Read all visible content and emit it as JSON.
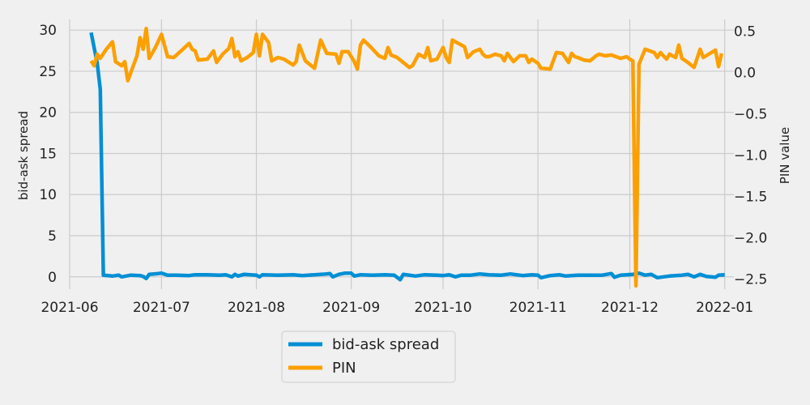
{
  "chart_data": {
    "type": "line",
    "title": "",
    "colors": {
      "bid_ask_spread": "#008fd5",
      "pin": "#fc9f00",
      "background": "#f0f0f0",
      "grid": "#cbcbcb"
    },
    "grid": true,
    "legend_placement": "bottom-center, below plot",
    "x_axis": {
      "type": "date",
      "range": [
        "2021-06-01",
        "2022-01-04"
      ],
      "ticks": [
        "2021-06-01",
        "2021-07-01",
        "2021-08-01",
        "2021-09-01",
        "2021-10-01",
        "2021-11-01",
        "2021-12-01",
        "2022-01-01"
      ],
      "tick_labels": [
        "2021-06",
        "2021-07",
        "2021-08",
        "2021-09",
        "2021-10",
        "2021-11",
        "2021-12",
        "2022-01"
      ]
    },
    "y_left": {
      "label": "bid-ask spread",
      "range": [
        -1.5,
        31.3
      ],
      "ticks": [
        0,
        5,
        10,
        15,
        20,
        25,
        30
      ],
      "tick_labels": [
        "0",
        "5",
        "10",
        "15",
        "20",
        "25",
        "30"
      ]
    },
    "y_right": {
      "label": "PIN value",
      "range": [
        -2.62,
        0.64
      ],
      "ticks": [
        -2.5,
        -2.0,
        -1.5,
        -1.0,
        -0.5,
        0.0,
        0.5
      ],
      "tick_labels": [
        "−2.5",
        "−2.0",
        "−1.5",
        "−1.0",
        "−0.5",
        "0.0",
        "0.5"
      ]
    },
    "series": [
      {
        "name": "bid-ask spread",
        "axis": "left",
        "points": [
          [
            "2021-06-08",
            29.7
          ],
          [
            "2021-06-10",
            26.0
          ],
          [
            "2021-06-11",
            22.8
          ],
          [
            "2021-06-12",
            0.2
          ],
          [
            "2021-06-15",
            0.1
          ],
          [
            "2021-06-17",
            0.2
          ],
          [
            "2021-06-18",
            0.0
          ],
          [
            "2021-06-21",
            0.2
          ],
          [
            "2021-06-24",
            0.15
          ],
          [
            "2021-06-25",
            0.05
          ],
          [
            "2021-06-26",
            -0.2
          ],
          [
            "2021-06-27",
            0.3
          ],
          [
            "2021-06-30",
            0.4
          ],
          [
            "2021-07-01",
            0.45
          ],
          [
            "2021-07-03",
            0.2
          ],
          [
            "2021-07-06",
            0.2
          ],
          [
            "2021-07-10",
            0.15
          ],
          [
            "2021-07-12",
            0.25
          ],
          [
            "2021-07-16",
            0.25
          ],
          [
            "2021-07-20",
            0.2
          ],
          [
            "2021-07-22",
            0.25
          ],
          [
            "2021-07-24",
            0.0
          ],
          [
            "2021-07-25",
            0.3
          ],
          [
            "2021-07-26",
            0.1
          ],
          [
            "2021-07-28",
            0.3
          ],
          [
            "2021-08-01",
            0.2
          ],
          [
            "2021-08-02",
            0.0
          ],
          [
            "2021-08-03",
            0.25
          ],
          [
            "2021-08-08",
            0.2
          ],
          [
            "2021-08-13",
            0.25
          ],
          [
            "2021-08-16",
            0.15
          ],
          [
            "2021-08-20",
            0.25
          ],
          [
            "2021-08-24",
            0.35
          ],
          [
            "2021-08-25",
            0.4
          ],
          [
            "2021-08-26",
            0.0
          ],
          [
            "2021-08-28",
            0.3
          ],
          [
            "2021-08-30",
            0.45
          ],
          [
            "2021-09-01",
            0.45
          ],
          [
            "2021-09-02",
            0.1
          ],
          [
            "2021-09-04",
            0.25
          ],
          [
            "2021-09-08",
            0.2
          ],
          [
            "2021-09-12",
            0.25
          ],
          [
            "2021-09-15",
            0.2
          ],
          [
            "2021-09-17",
            -0.35
          ],
          [
            "2021-09-18",
            0.3
          ],
          [
            "2021-09-22",
            0.1
          ],
          [
            "2021-09-25",
            0.25
          ],
          [
            "2021-09-29",
            0.2
          ],
          [
            "2021-10-01",
            0.15
          ],
          [
            "2021-10-03",
            0.25
          ],
          [
            "2021-10-05",
            0.0
          ],
          [
            "2021-10-07",
            0.2
          ],
          [
            "2021-10-10",
            0.2
          ],
          [
            "2021-10-13",
            0.35
          ],
          [
            "2021-10-16",
            0.25
          ],
          [
            "2021-10-20",
            0.2
          ],
          [
            "2021-10-23",
            0.35
          ],
          [
            "2021-10-27",
            0.15
          ],
          [
            "2021-10-30",
            0.25
          ],
          [
            "2021-11-01",
            0.2
          ],
          [
            "2021-11-02",
            -0.1
          ],
          [
            "2021-11-05",
            0.15
          ],
          [
            "2021-11-08",
            0.25
          ],
          [
            "2021-11-10",
            0.1
          ],
          [
            "2021-11-14",
            0.2
          ],
          [
            "2021-11-18",
            0.2
          ],
          [
            "2021-11-22",
            0.2
          ],
          [
            "2021-11-25",
            0.4
          ],
          [
            "2021-11-26",
            -0.05
          ],
          [
            "2021-11-28",
            0.2
          ],
          [
            "2021-12-02",
            0.3
          ],
          [
            "2021-12-04",
            0.45
          ],
          [
            "2021-12-06",
            0.2
          ],
          [
            "2021-12-08",
            0.3
          ],
          [
            "2021-12-10",
            -0.1
          ],
          [
            "2021-12-14",
            0.1
          ],
          [
            "2021-12-18",
            0.2
          ],
          [
            "2021-12-20",
            0.3
          ],
          [
            "2021-12-22",
            0.0
          ],
          [
            "2021-12-24",
            0.3
          ],
          [
            "2021-12-26",
            0.05
          ],
          [
            "2021-12-29",
            -0.05
          ],
          [
            "2021-12-30",
            0.2
          ],
          [
            "2022-01-01",
            0.25
          ]
        ]
      },
      {
        "name": "PIN",
        "axis": "right",
        "points": [
          [
            "2021-06-08",
            0.14
          ],
          [
            "2021-06-09",
            0.08
          ],
          [
            "2021-06-10",
            0.22
          ],
          [
            "2021-06-11",
            0.17
          ],
          [
            "2021-06-13",
            0.28
          ],
          [
            "2021-06-15",
            0.37
          ],
          [
            "2021-06-16",
            0.13
          ],
          [
            "2021-06-18",
            0.08
          ],
          [
            "2021-06-19",
            0.13
          ],
          [
            "2021-06-20",
            -0.1
          ],
          [
            "2021-06-23",
            0.2
          ],
          [
            "2021-06-24",
            0.42
          ],
          [
            "2021-06-25",
            0.28
          ],
          [
            "2021-06-26",
            0.53
          ],
          [
            "2021-06-27",
            0.17
          ],
          [
            "2021-06-29",
            0.3
          ],
          [
            "2021-07-01",
            0.46
          ],
          [
            "2021-07-03",
            0.19
          ],
          [
            "2021-07-05",
            0.18
          ],
          [
            "2021-07-08",
            0.28
          ],
          [
            "2021-07-10",
            0.35
          ],
          [
            "2021-07-11",
            0.28
          ],
          [
            "2021-07-12",
            0.26
          ],
          [
            "2021-07-13",
            0.15
          ],
          [
            "2021-07-16",
            0.16
          ],
          [
            "2021-07-18",
            0.26
          ],
          [
            "2021-07-19",
            0.12
          ],
          [
            "2021-07-21",
            0.22
          ],
          [
            "2021-07-23",
            0.29
          ],
          [
            "2021-07-24",
            0.41
          ],
          [
            "2021-07-25",
            0.19
          ],
          [
            "2021-07-26",
            0.25
          ],
          [
            "2021-07-27",
            0.14
          ],
          [
            "2021-07-29",
            0.18
          ],
          [
            "2021-07-31",
            0.24
          ],
          [
            "2021-08-01",
            0.46
          ],
          [
            "2021-08-02",
            0.2
          ],
          [
            "2021-08-03",
            0.46
          ],
          [
            "2021-08-05",
            0.36
          ],
          [
            "2021-08-06",
            0.14
          ],
          [
            "2021-08-08",
            0.18
          ],
          [
            "2021-08-10",
            0.16
          ],
          [
            "2021-08-13",
            0.09
          ],
          [
            "2021-08-14",
            0.13
          ],
          [
            "2021-08-15",
            0.33
          ],
          [
            "2021-08-17",
            0.14
          ],
          [
            "2021-08-20",
            0.05
          ],
          [
            "2021-08-22",
            0.39
          ],
          [
            "2021-08-24",
            0.23
          ],
          [
            "2021-08-27",
            0.22
          ],
          [
            "2021-08-28",
            0.11
          ],
          [
            "2021-08-29",
            0.25
          ],
          [
            "2021-08-31",
            0.25
          ],
          [
            "2021-09-02",
            0.13
          ],
          [
            "2021-09-03",
            0.04
          ],
          [
            "2021-09-04",
            0.33
          ],
          [
            "2021-09-05",
            0.39
          ],
          [
            "2021-09-07",
            0.32
          ],
          [
            "2021-09-10",
            0.2
          ],
          [
            "2021-09-12",
            0.17
          ],
          [
            "2021-09-13",
            0.3
          ],
          [
            "2021-09-14",
            0.21
          ],
          [
            "2021-09-16",
            0.18
          ],
          [
            "2021-09-20",
            0.06
          ],
          [
            "2021-09-21",
            0.08
          ],
          [
            "2021-09-23",
            0.22
          ],
          [
            "2021-09-25",
            0.18
          ],
          [
            "2021-09-26",
            0.3
          ],
          [
            "2021-09-27",
            0.14
          ],
          [
            "2021-09-29",
            0.16
          ],
          [
            "2021-10-01",
            0.3
          ],
          [
            "2021-10-02",
            0.18
          ],
          [
            "2021-10-03",
            0.12
          ],
          [
            "2021-10-04",
            0.39
          ],
          [
            "2021-10-08",
            0.31
          ],
          [
            "2021-10-09",
            0.18
          ],
          [
            "2021-10-11",
            0.25
          ],
          [
            "2021-10-13",
            0.28
          ],
          [
            "2021-10-14",
            0.22
          ],
          [
            "2021-10-15",
            0.19
          ],
          [
            "2021-10-16",
            0.19
          ],
          [
            "2021-10-18",
            0.22
          ],
          [
            "2021-10-20",
            0.2
          ],
          [
            "2021-10-21",
            0.14
          ],
          [
            "2021-10-22",
            0.23
          ],
          [
            "2021-10-24",
            0.13
          ],
          [
            "2021-10-26",
            0.2
          ],
          [
            "2021-10-28",
            0.2
          ],
          [
            "2021-10-29",
            0.12
          ],
          [
            "2021-10-30",
            0.16
          ],
          [
            "2021-11-01",
            0.11
          ],
          [
            "2021-11-02",
            0.05
          ],
          [
            "2021-11-05",
            0.04
          ],
          [
            "2021-11-07",
            0.24
          ],
          [
            "2021-11-09",
            0.23
          ],
          [
            "2021-11-11",
            0.12
          ],
          [
            "2021-11-12",
            0.23
          ],
          [
            "2021-11-13",
            0.19
          ],
          [
            "2021-11-14",
            0.18
          ],
          [
            "2021-11-16",
            0.15
          ],
          [
            "2021-11-18",
            0.14
          ],
          [
            "2021-11-20",
            0.2
          ],
          [
            "2021-11-21",
            0.22
          ],
          [
            "2021-11-23",
            0.2
          ],
          [
            "2021-11-25",
            0.21
          ],
          [
            "2021-11-28",
            0.17
          ],
          [
            "2021-11-30",
            0.19
          ],
          [
            "2021-12-01",
            0.16
          ],
          [
            "2021-12-02",
            0.14
          ],
          [
            "2021-12-03",
            -2.58
          ],
          [
            "2021-12-04",
            0.1
          ],
          [
            "2021-12-06",
            0.28
          ],
          [
            "2021-12-09",
            0.24
          ],
          [
            "2021-12-10",
            0.18
          ],
          [
            "2021-12-11",
            0.24
          ],
          [
            "2021-12-13",
            0.16
          ],
          [
            "2021-12-14",
            0.22
          ],
          [
            "2021-12-16",
            0.18
          ],
          [
            "2021-12-17",
            0.33
          ],
          [
            "2021-12-18",
            0.17
          ],
          [
            "2021-12-20",
            0.12
          ],
          [
            "2021-12-22",
            0.06
          ],
          [
            "2021-12-24",
            0.28
          ],
          [
            "2021-12-25",
            0.18
          ],
          [
            "2021-12-29",
            0.27
          ],
          [
            "2021-12-30",
            0.07
          ],
          [
            "2021-12-31",
            0.23
          ]
        ]
      }
    ]
  }
}
